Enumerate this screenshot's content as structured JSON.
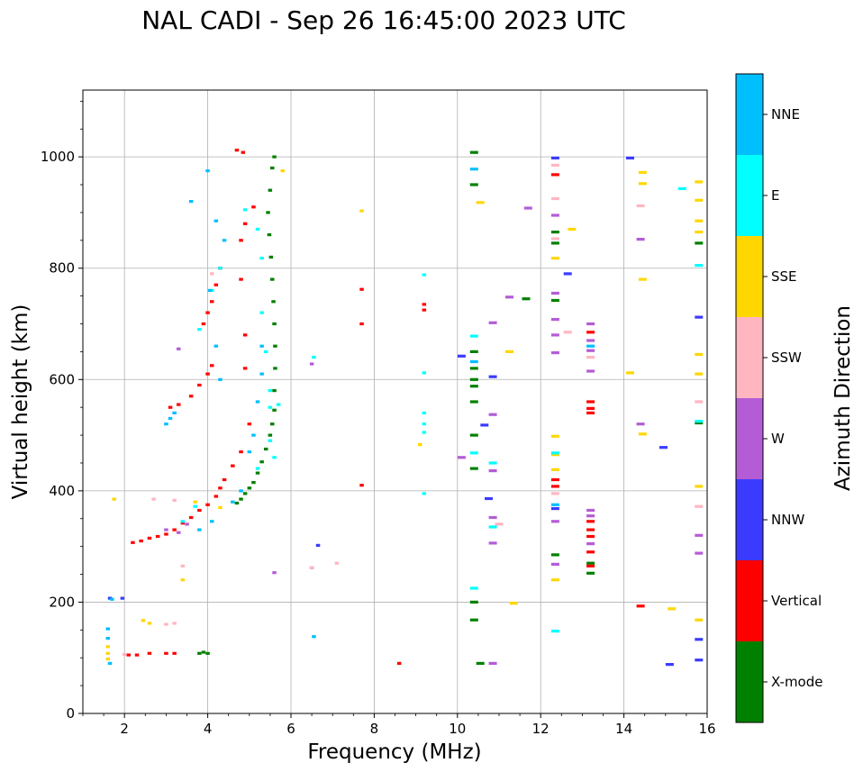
{
  "chart_data": {
    "type": "scatter",
    "title": "NAL CADI - Sep 26 16:45:00 2023 UTC",
    "xlabel": "Frequency (MHz)",
    "ylabel": "Virtual height (km)",
    "xlim": [
      1,
      16
    ],
    "ylim": [
      0,
      1120
    ],
    "xticks": [
      2,
      4,
      6,
      8,
      10,
      12,
      14,
      16
    ],
    "yticks": [
      0,
      200,
      400,
      600,
      800,
      1000
    ],
    "grid": true,
    "colorbar": {
      "label": "Azimuth Direction",
      "categories": [
        {
          "name": "X-mode",
          "color": "#008000"
        },
        {
          "name": "Vertical",
          "color": "#ff0000"
        },
        {
          "name": "NNW",
          "color": "#3b3bff"
        },
        {
          "name": "W",
          "color": "#b45cd6"
        },
        {
          "name": "SSW",
          "color": "#ffb6c1"
        },
        {
          "name": "SSE",
          "color": "#ffd700"
        },
        {
          "name": "E",
          "color": "#00ffff"
        },
        {
          "name": "NNE",
          "color": "#00bfff"
        }
      ]
    },
    "series": [
      {
        "name": "X-mode",
        "points": [
          [
            3.8,
            108
          ],
          [
            3.9,
            110
          ],
          [
            4.0,
            108
          ],
          [
            4.7,
            378
          ],
          [
            4.8,
            385
          ],
          [
            4.9,
            395
          ],
          [
            5.0,
            405
          ],
          [
            5.1,
            415
          ],
          [
            5.2,
            432
          ],
          [
            5.3,
            452
          ],
          [
            5.4,
            475
          ],
          [
            5.5,
            500
          ],
          [
            5.55,
            520
          ],
          [
            5.6,
            545
          ],
          [
            5.6,
            580
          ],
          [
            5.62,
            620
          ],
          [
            5.62,
            660
          ],
          [
            5.6,
            700
          ],
          [
            5.58,
            740
          ],
          [
            5.55,
            780
          ],
          [
            5.52,
            820
          ],
          [
            5.48,
            860
          ],
          [
            5.45,
            900
          ],
          [
            5.5,
            940
          ],
          [
            5.55,
            980
          ],
          [
            5.6,
            1000
          ],
          [
            10.4,
            1008
          ],
          [
            10.4,
            950
          ],
          [
            10.4,
            650
          ],
          [
            10.4,
            620
          ],
          [
            10.4,
            600
          ],
          [
            10.4,
            588
          ],
          [
            10.4,
            560
          ],
          [
            10.4,
            500
          ],
          [
            10.4,
            440
          ],
          [
            10.4,
            200
          ],
          [
            10.4,
            168
          ],
          [
            10.55,
            90
          ],
          [
            11.65,
            745
          ],
          [
            12.35,
            865
          ],
          [
            12.35,
            845
          ],
          [
            12.35,
            742
          ],
          [
            12.35,
            285
          ],
          [
            13.2,
            270
          ],
          [
            13.2,
            252
          ],
          [
            15.8,
            845
          ],
          [
            15.8,
            522
          ]
        ]
      },
      {
        "name": "Vertical",
        "points": [
          [
            2.2,
            307
          ],
          [
            2.4,
            310
          ],
          [
            2.6,
            315
          ],
          [
            2.8,
            318
          ],
          [
            3.0,
            322
          ],
          [
            3.2,
            330
          ],
          [
            3.4,
            342
          ],
          [
            3.6,
            352
          ],
          [
            3.8,
            365
          ],
          [
            4.0,
            375
          ],
          [
            4.2,
            390
          ],
          [
            4.3,
            405
          ],
          [
            4.4,
            420
          ],
          [
            4.6,
            445
          ],
          [
            4.8,
            470
          ],
          [
            3.1,
            550
          ],
          [
            3.3,
            555
          ],
          [
            3.6,
            570
          ],
          [
            3.8,
            590
          ],
          [
            4.0,
            610
          ],
          [
            4.1,
            625
          ],
          [
            3.9,
            700
          ],
          [
            4.0,
            720
          ],
          [
            4.1,
            740
          ],
          [
            4.2,
            770
          ],
          [
            4.3,
            800
          ],
          [
            2.1,
            105
          ],
          [
            2.3,
            105
          ],
          [
            2.6,
            108
          ],
          [
            3.0,
            108
          ],
          [
            3.2,
            108
          ],
          [
            4.7,
            1012
          ],
          [
            4.85,
            1008
          ],
          [
            5.1,
            910
          ],
          [
            4.9,
            880
          ],
          [
            4.8,
            850
          ],
          [
            4.8,
            780
          ],
          [
            4.9,
            680
          ],
          [
            4.9,
            620
          ],
          [
            5.0,
            520
          ],
          [
            7.7,
            762
          ],
          [
            7.7,
            700
          ],
          [
            7.7,
            410
          ],
          [
            8.6,
            90
          ],
          [
            9.2,
            735
          ],
          [
            9.2,
            725
          ],
          [
            12.35,
            968
          ],
          [
            12.35,
            420
          ],
          [
            12.35,
            408
          ],
          [
            13.2,
            685
          ],
          [
            13.2,
            560
          ],
          [
            13.2,
            548
          ],
          [
            13.2,
            540
          ],
          [
            13.2,
            345
          ],
          [
            13.2,
            330
          ],
          [
            13.2,
            318
          ],
          [
            13.2,
            290
          ],
          [
            13.2,
            265
          ],
          [
            14.4,
            193
          ]
        ]
      },
      {
        "name": "NNW",
        "points": [
          [
            1.65,
            207
          ],
          [
            1.95,
            207
          ],
          [
            6.65,
            302
          ],
          [
            6.5,
            262
          ],
          [
            10.1,
            642
          ],
          [
            10.65,
            518
          ],
          [
            10.75,
            386
          ],
          [
            10.85,
            605
          ],
          [
            12.35,
            998
          ],
          [
            12.35,
            368
          ],
          [
            12.65,
            790
          ],
          [
            14.15,
            998
          ],
          [
            14.95,
            478
          ],
          [
            15.1,
            88
          ],
          [
            15.8,
            712
          ],
          [
            15.8,
            133
          ],
          [
            15.8,
            96
          ]
        ]
      },
      {
        "name": "W",
        "points": [
          [
            3.0,
            330
          ],
          [
            3.3,
            325
          ],
          [
            3.5,
            340
          ],
          [
            3.3,
            655
          ],
          [
            5.6,
            253
          ],
          [
            6.5,
            628
          ],
          [
            10.1,
            460
          ],
          [
            10.85,
            702
          ],
          [
            10.85,
            537
          ],
          [
            10.85,
            436
          ],
          [
            10.85,
            352
          ],
          [
            10.85,
            306
          ],
          [
            10.85,
            90
          ],
          [
            11.25,
            748
          ],
          [
            11.7,
            908
          ],
          [
            12.35,
            895
          ],
          [
            12.35,
            755
          ],
          [
            12.35,
            708
          ],
          [
            12.35,
            680
          ],
          [
            12.35,
            648
          ],
          [
            12.35,
            345
          ],
          [
            12.35,
            268
          ],
          [
            13.2,
            700
          ],
          [
            13.2,
            670
          ],
          [
            13.2,
            652
          ],
          [
            13.2,
            615
          ],
          [
            13.2,
            365
          ],
          [
            13.2,
            355
          ],
          [
            13.2,
            305
          ],
          [
            14.4,
            852
          ],
          [
            14.4,
            520
          ],
          [
            15.8,
            320
          ],
          [
            15.8,
            288
          ]
        ]
      },
      {
        "name": "SSW",
        "points": [
          [
            2.0,
            106
          ],
          [
            3.0,
            160
          ],
          [
            3.2,
            162
          ],
          [
            3.4,
            265
          ],
          [
            3.2,
            383
          ],
          [
            2.7,
            385
          ],
          [
            4.1,
            790
          ],
          [
            6.5,
            262
          ],
          [
            7.1,
            270
          ],
          [
            11.0,
            340
          ],
          [
            12.35,
            985
          ],
          [
            12.35,
            925
          ],
          [
            12.35,
            853
          ],
          [
            12.35,
            395
          ],
          [
            12.65,
            685
          ],
          [
            13.2,
            640
          ],
          [
            14.4,
            912
          ],
          [
            15.8,
            560
          ],
          [
            15.8,
            372
          ]
        ]
      },
      {
        "name": "SSE",
        "points": [
          [
            1.6,
            120
          ],
          [
            1.6,
            108
          ],
          [
            1.6,
            98
          ],
          [
            1.75,
            385
          ],
          [
            2.45,
            167
          ],
          [
            2.6,
            162
          ],
          [
            3.4,
            240
          ],
          [
            3.7,
            380
          ],
          [
            4.3,
            370
          ],
          [
            5.8,
            975
          ],
          [
            7.7,
            903
          ],
          [
            9.1,
            483
          ],
          [
            10.55,
            918
          ],
          [
            11.25,
            650
          ],
          [
            11.35,
            198
          ],
          [
            12.35,
            818
          ],
          [
            12.35,
            498
          ],
          [
            12.35,
            465
          ],
          [
            12.35,
            438
          ],
          [
            12.35,
            240
          ],
          [
            12.75,
            870
          ],
          [
            14.15,
            612
          ],
          [
            14.45,
            972
          ],
          [
            14.45,
            952
          ],
          [
            14.45,
            780
          ],
          [
            14.45,
            502
          ],
          [
            15.15,
            188
          ],
          [
            15.8,
            955
          ],
          [
            15.8,
            922
          ],
          [
            15.8,
            885
          ],
          [
            15.8,
            865
          ],
          [
            15.8,
            645
          ],
          [
            15.8,
            610
          ],
          [
            15.8,
            408
          ],
          [
            15.8,
            168
          ]
        ]
      },
      {
        "name": "E",
        "points": [
          [
            3.4,
            345
          ],
          [
            3.7,
            372
          ],
          [
            3.8,
            690
          ],
          [
            4.1,
            760
          ],
          [
            4.3,
            800
          ],
          [
            4.9,
            905
          ],
          [
            5.2,
            870
          ],
          [
            5.3,
            818
          ],
          [
            5.3,
            720
          ],
          [
            5.4,
            650
          ],
          [
            5.5,
            580
          ],
          [
            5.5,
            550
          ],
          [
            5.5,
            490
          ],
          [
            5.6,
            460
          ],
          [
            5.7,
            555
          ],
          [
            5.2,
            440
          ],
          [
            6.55,
            640
          ],
          [
            9.2,
            788
          ],
          [
            9.2,
            612
          ],
          [
            9.2,
            540
          ],
          [
            9.2,
            520
          ],
          [
            9.2,
            505
          ],
          [
            9.2,
            395
          ],
          [
            10.4,
            678
          ],
          [
            10.4,
            468
          ],
          [
            10.4,
            225
          ],
          [
            10.85,
            450
          ],
          [
            10.85,
            335
          ],
          [
            12.35,
            468
          ],
          [
            12.35,
            148
          ],
          [
            15.4,
            943
          ],
          [
            15.8,
            805
          ],
          [
            15.8,
            525
          ]
        ]
      },
      {
        "name": "NNE",
        "points": [
          [
            1.6,
            135
          ],
          [
            1.6,
            152
          ],
          [
            1.65,
            90
          ],
          [
            1.7,
            205
          ],
          [
            3.0,
            520
          ],
          [
            3.1,
            530
          ],
          [
            3.2,
            540
          ],
          [
            3.6,
            920
          ],
          [
            4.0,
            975
          ],
          [
            4.2,
            885
          ],
          [
            4.4,
            850
          ],
          [
            4.05,
            760
          ],
          [
            4.2,
            660
          ],
          [
            4.3,
            600
          ],
          [
            3.8,
            330
          ],
          [
            4.1,
            345
          ],
          [
            4.6,
            380
          ],
          [
            4.8,
            400
          ],
          [
            5.0,
            470
          ],
          [
            5.1,
            500
          ],
          [
            5.2,
            560
          ],
          [
            5.3,
            610
          ],
          [
            5.3,
            660
          ],
          [
            6.55,
            138
          ],
          [
            10.4,
            978
          ],
          [
            10.4,
            632
          ],
          [
            12.35,
            375
          ],
          [
            13.2,
            660
          ]
        ]
      }
    ]
  }
}
